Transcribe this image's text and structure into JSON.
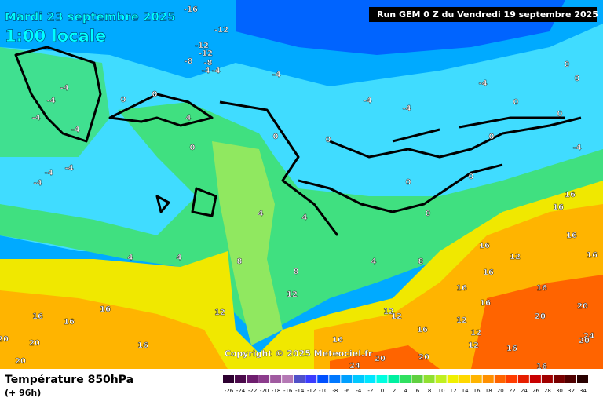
{
  "header": {
    "title": "Mardi 23 septembre 2025",
    "time": "1:00 locale",
    "run": "Run GEM 0 Z du Vendredi 19 septembre 2025",
    "copyright": "Copyright © 2025 Meteociel.fr"
  },
  "map_labels": [
    -16,
    -12,
    -12,
    -8,
    -12,
    -8,
    -4,
    -4,
    -4,
    -4,
    -4,
    -4,
    0,
    0,
    0,
    0,
    -4,
    0,
    0,
    -4,
    -4,
    -4,
    -4,
    -4,
    -4,
    -4,
    4,
    0,
    0,
    0,
    0,
    0,
    0,
    0,
    4,
    4,
    4,
    4,
    8,
    8,
    4,
    8,
    12,
    12,
    16,
    16,
    16,
    16,
    20,
    20,
    20,
    16,
    12,
    16,
    16,
    16,
    16,
    16,
    16,
    16,
    16,
    20,
    20,
    24,
    12,
    12,
    12,
    16,
    16,
    20,
    20,
    24,
    16,
    16,
    20,
    12,
    12
  ],
  "legend": {
    "title": "Température 850hPa",
    "subtitle": "(+ 96h)",
    "ticks": [
      -26,
      -24,
      -22,
      -20,
      -18,
      -16,
      -14,
      -12,
      -10,
      -8,
      -6,
      -4,
      -2,
      0,
      2,
      4,
      6,
      8,
      10,
      12,
      14,
      16,
      18,
      20,
      22,
      24,
      26,
      28,
      30,
      32,
      34
    ],
    "colors": [
      "#2d0030",
      "#4b0a4b",
      "#6e1e6e",
      "#8c3c8c",
      "#a05aa0",
      "#b478b4",
      "#5050c8",
      "#3c3cff",
      "#0050ff",
      "#0078ff",
      "#00a0ff",
      "#00c8ff",
      "#00e6ff",
      "#00ffe0",
      "#00f0a0",
      "#30e060",
      "#60d040",
      "#90e030",
      "#c0f020",
      "#f0f000",
      "#ffd800",
      "#ffb400",
      "#ff9000",
      "#ff6400",
      "#ff3c00",
      "#e61e00",
      "#c80000",
      "#a00000",
      "#780000",
      "#500000",
      "#280000"
    ]
  }
}
